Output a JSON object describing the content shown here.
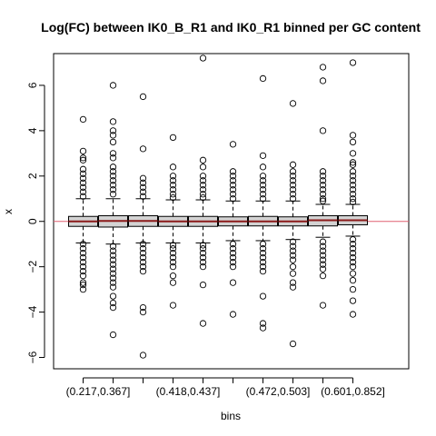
{
  "chart_data": {
    "type": "boxplot",
    "title": "Log(FC) between IK0_B_R1 and IK0_R1 binned per GC content",
    "xlabel": "bins",
    "ylabel": "x",
    "ylim": [
      -6.5,
      7.4
    ],
    "yticks": [
      -6,
      -4,
      -2,
      0,
      2,
      4,
      6
    ],
    "xtick_labels": [
      "(0.217,0.367]",
      "(0.418,0.437]",
      "(0.472,0.503]",
      "(0.601,0.852]"
    ],
    "xtick_label_positions": [
      1,
      4,
      7,
      10
    ],
    "reference_line": {
      "y": 0,
      "color": "#e06070"
    },
    "box_fill": "#d3d3d3",
    "median_color": "#8b1a1a",
    "boxes": [
      {
        "q1": -0.22,
        "median": 0.0,
        "q3": 0.22,
        "whisker_low": -0.95,
        "whisker_high": 1.0,
        "outliers": [
          4.5,
          3.1,
          2.8,
          2.7,
          2.3,
          2.1,
          1.9,
          1.7,
          1.5,
          1.3,
          1.1,
          -1.0,
          -1.2,
          -1.4,
          -1.6,
          -1.8,
          -2.0,
          -2.2,
          -2.4,
          -2.7,
          -2.8,
          -3.0
        ]
      },
      {
        "q1": -0.25,
        "median": 0.02,
        "q3": 0.25,
        "whisker_low": -1.0,
        "whisker_high": 1.0,
        "outliers": [
          6.0,
          4.4,
          4.0,
          3.8,
          3.5,
          3.0,
          2.8,
          2.4,
          2.2,
          2.0,
          1.8,
          1.6,
          1.4,
          1.2,
          -1.1,
          -1.3,
          -1.5,
          -1.7,
          -1.9,
          -2.1,
          -2.3,
          -2.5,
          -2.7,
          -2.9,
          -3.3,
          -3.6,
          -3.8,
          -5.0
        ]
      },
      {
        "q1": -0.22,
        "median": 0.02,
        "q3": 0.25,
        "whisker_low": -0.95,
        "whisker_high": 1.0,
        "outliers": [
          5.5,
          3.2,
          1.9,
          1.7,
          1.5,
          1.3,
          1.1,
          -1.0,
          -1.2,
          -1.4,
          -1.6,
          -1.8,
          -2.0,
          -2.2,
          -3.8,
          -4.0,
          -5.9
        ]
      },
      {
        "q1": -0.22,
        "median": 0.0,
        "q3": 0.22,
        "whisker_low": -0.95,
        "whisker_high": 0.95,
        "outliers": [
          3.7,
          2.4,
          2.0,
          1.8,
          1.6,
          1.4,
          1.2,
          1.05,
          -1.05,
          -1.2,
          -1.4,
          -1.6,
          -1.8,
          -2.0,
          -2.4,
          -2.7,
          -3.7
        ]
      },
      {
        "q1": -0.22,
        "median": 0.0,
        "q3": 0.22,
        "whisker_low": -0.95,
        "whisker_high": 0.95,
        "outliers": [
          7.2,
          2.7,
          2.4,
          2.0,
          1.8,
          1.6,
          1.4,
          1.2,
          1.05,
          -1.05,
          -1.2,
          -1.4,
          -1.6,
          -1.8,
          -2.0,
          -2.8,
          -4.5
        ]
      },
      {
        "q1": -0.2,
        "median": 0.0,
        "q3": 0.2,
        "whisker_low": -0.85,
        "whisker_high": 0.9,
        "outliers": [
          3.4,
          2.2,
          2.0,
          1.8,
          1.6,
          1.4,
          1.2,
          1.0,
          -1.0,
          -1.2,
          -1.4,
          -1.6,
          -1.8,
          -2.0,
          -2.7,
          -4.1
        ]
      },
      {
        "q1": -0.2,
        "median": 0.0,
        "q3": 0.22,
        "whisker_low": -0.85,
        "whisker_high": 0.9,
        "outliers": [
          6.3,
          2.9,
          2.4,
          2.0,
          1.8,
          1.6,
          1.4,
          1.2,
          1.0,
          -1.0,
          -1.2,
          -1.4,
          -1.6,
          -1.8,
          -2.0,
          -2.2,
          -3.3,
          -4.5,
          -4.7
        ]
      },
      {
        "q1": -0.2,
        "median": 0.0,
        "q3": 0.2,
        "whisker_low": -0.8,
        "whisker_high": 0.9,
        "outliers": [
          5.2,
          2.5,
          2.2,
          2.0,
          1.8,
          1.6,
          1.4,
          1.2,
          1.0,
          -0.9,
          -1.1,
          -1.3,
          -1.5,
          -1.7,
          -2.0,
          -2.3,
          -2.7,
          -2.9,
          -5.4
        ]
      },
      {
        "q1": -0.2,
        "median": 0.05,
        "q3": 0.25,
        "whisker_low": -0.7,
        "whisker_high": 0.75,
        "outliers": [
          6.8,
          6.2,
          4.0,
          2.2,
          2.0,
          1.8,
          1.6,
          1.4,
          1.2,
          1.0,
          0.9,
          -0.9,
          -1.1,
          -1.3,
          -1.5,
          -1.7,
          -1.9,
          -2.1,
          -2.4,
          -3.7
        ]
      },
      {
        "q1": -0.15,
        "median": 0.05,
        "q3": 0.25,
        "whisker_low": -0.65,
        "whisker_high": 0.75,
        "outliers": [
          7.0,
          3.8,
          3.5,
          3.0,
          2.6,
          2.5,
          2.2,
          2.0,
          1.8,
          1.6,
          1.4,
          1.2,
          1.0,
          0.85,
          -0.8,
          -1.0,
          -1.2,
          -1.4,
          -1.6,
          -1.8,
          -2.0,
          -2.3,
          -2.6,
          -3.0,
          -3.5,
          -4.1
        ]
      }
    ]
  }
}
